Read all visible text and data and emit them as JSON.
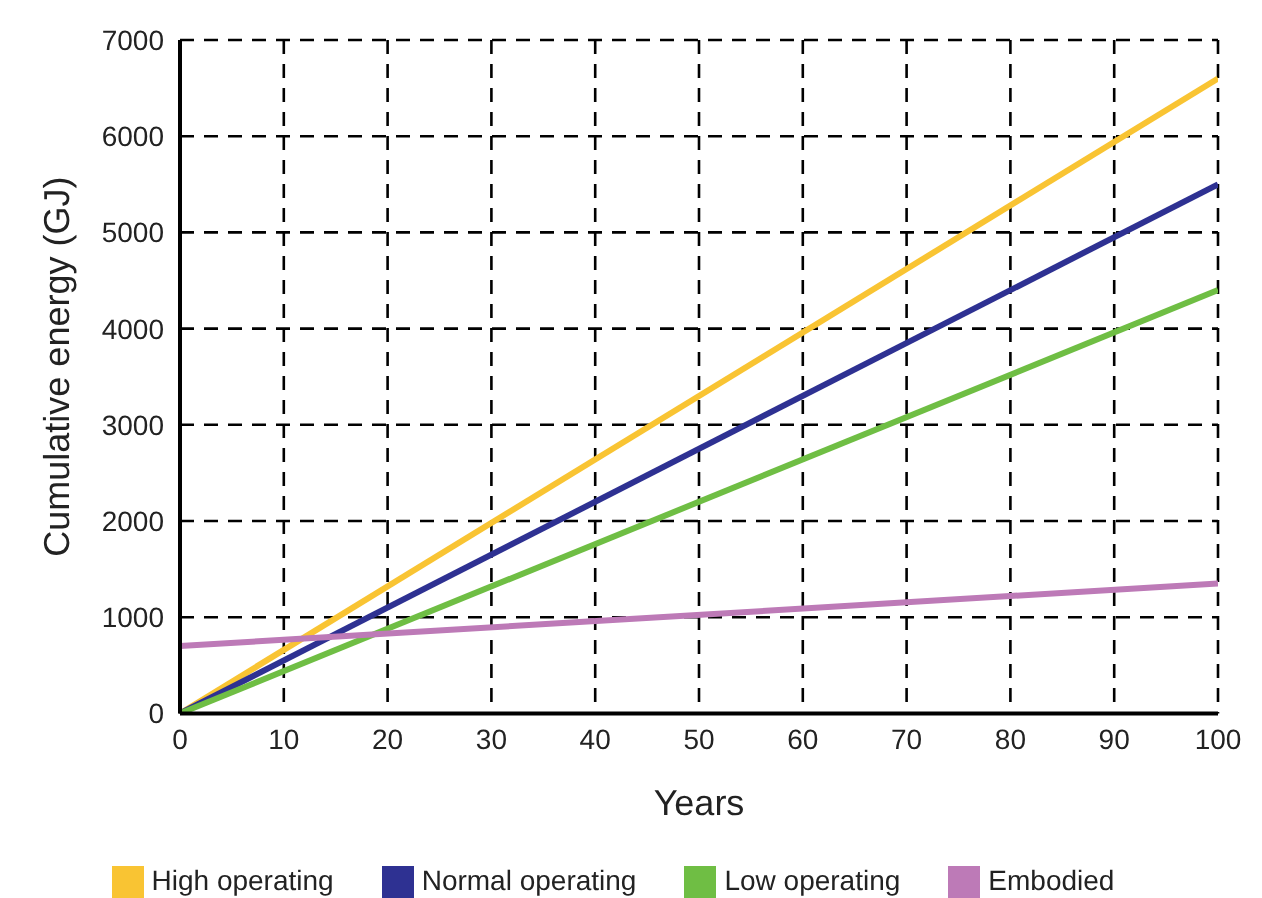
{
  "chart_data": {
    "type": "line",
    "xlabel": "Years",
    "ylabel": "Cumulative energy (GJ)",
    "x": [
      0,
      100
    ],
    "series": [
      {
        "name": "High operating",
        "color": "#f9c433",
        "values": [
          0,
          6600
        ]
      },
      {
        "name": "Normal operating",
        "color": "#2e3192",
        "values": [
          0,
          5500
        ]
      },
      {
        "name": "Low operating",
        "color": "#6fbe44",
        "values": [
          0,
          4400
        ]
      },
      {
        "name": "Embodied",
        "color": "#bd7ab7",
        "values": [
          700,
          1350
        ]
      }
    ],
    "xlim": [
      0,
      100
    ],
    "xticks": [
      0,
      10,
      20,
      30,
      40,
      50,
      60,
      70,
      80,
      90,
      100
    ],
    "ylim": [
      0,
      7000
    ],
    "yticks": [
      0,
      1000,
      2000,
      3000,
      4000,
      5000,
      6000,
      7000
    ],
    "grid": true,
    "legend": "bottom",
    "marker": "none",
    "line_style": "solid"
  }
}
